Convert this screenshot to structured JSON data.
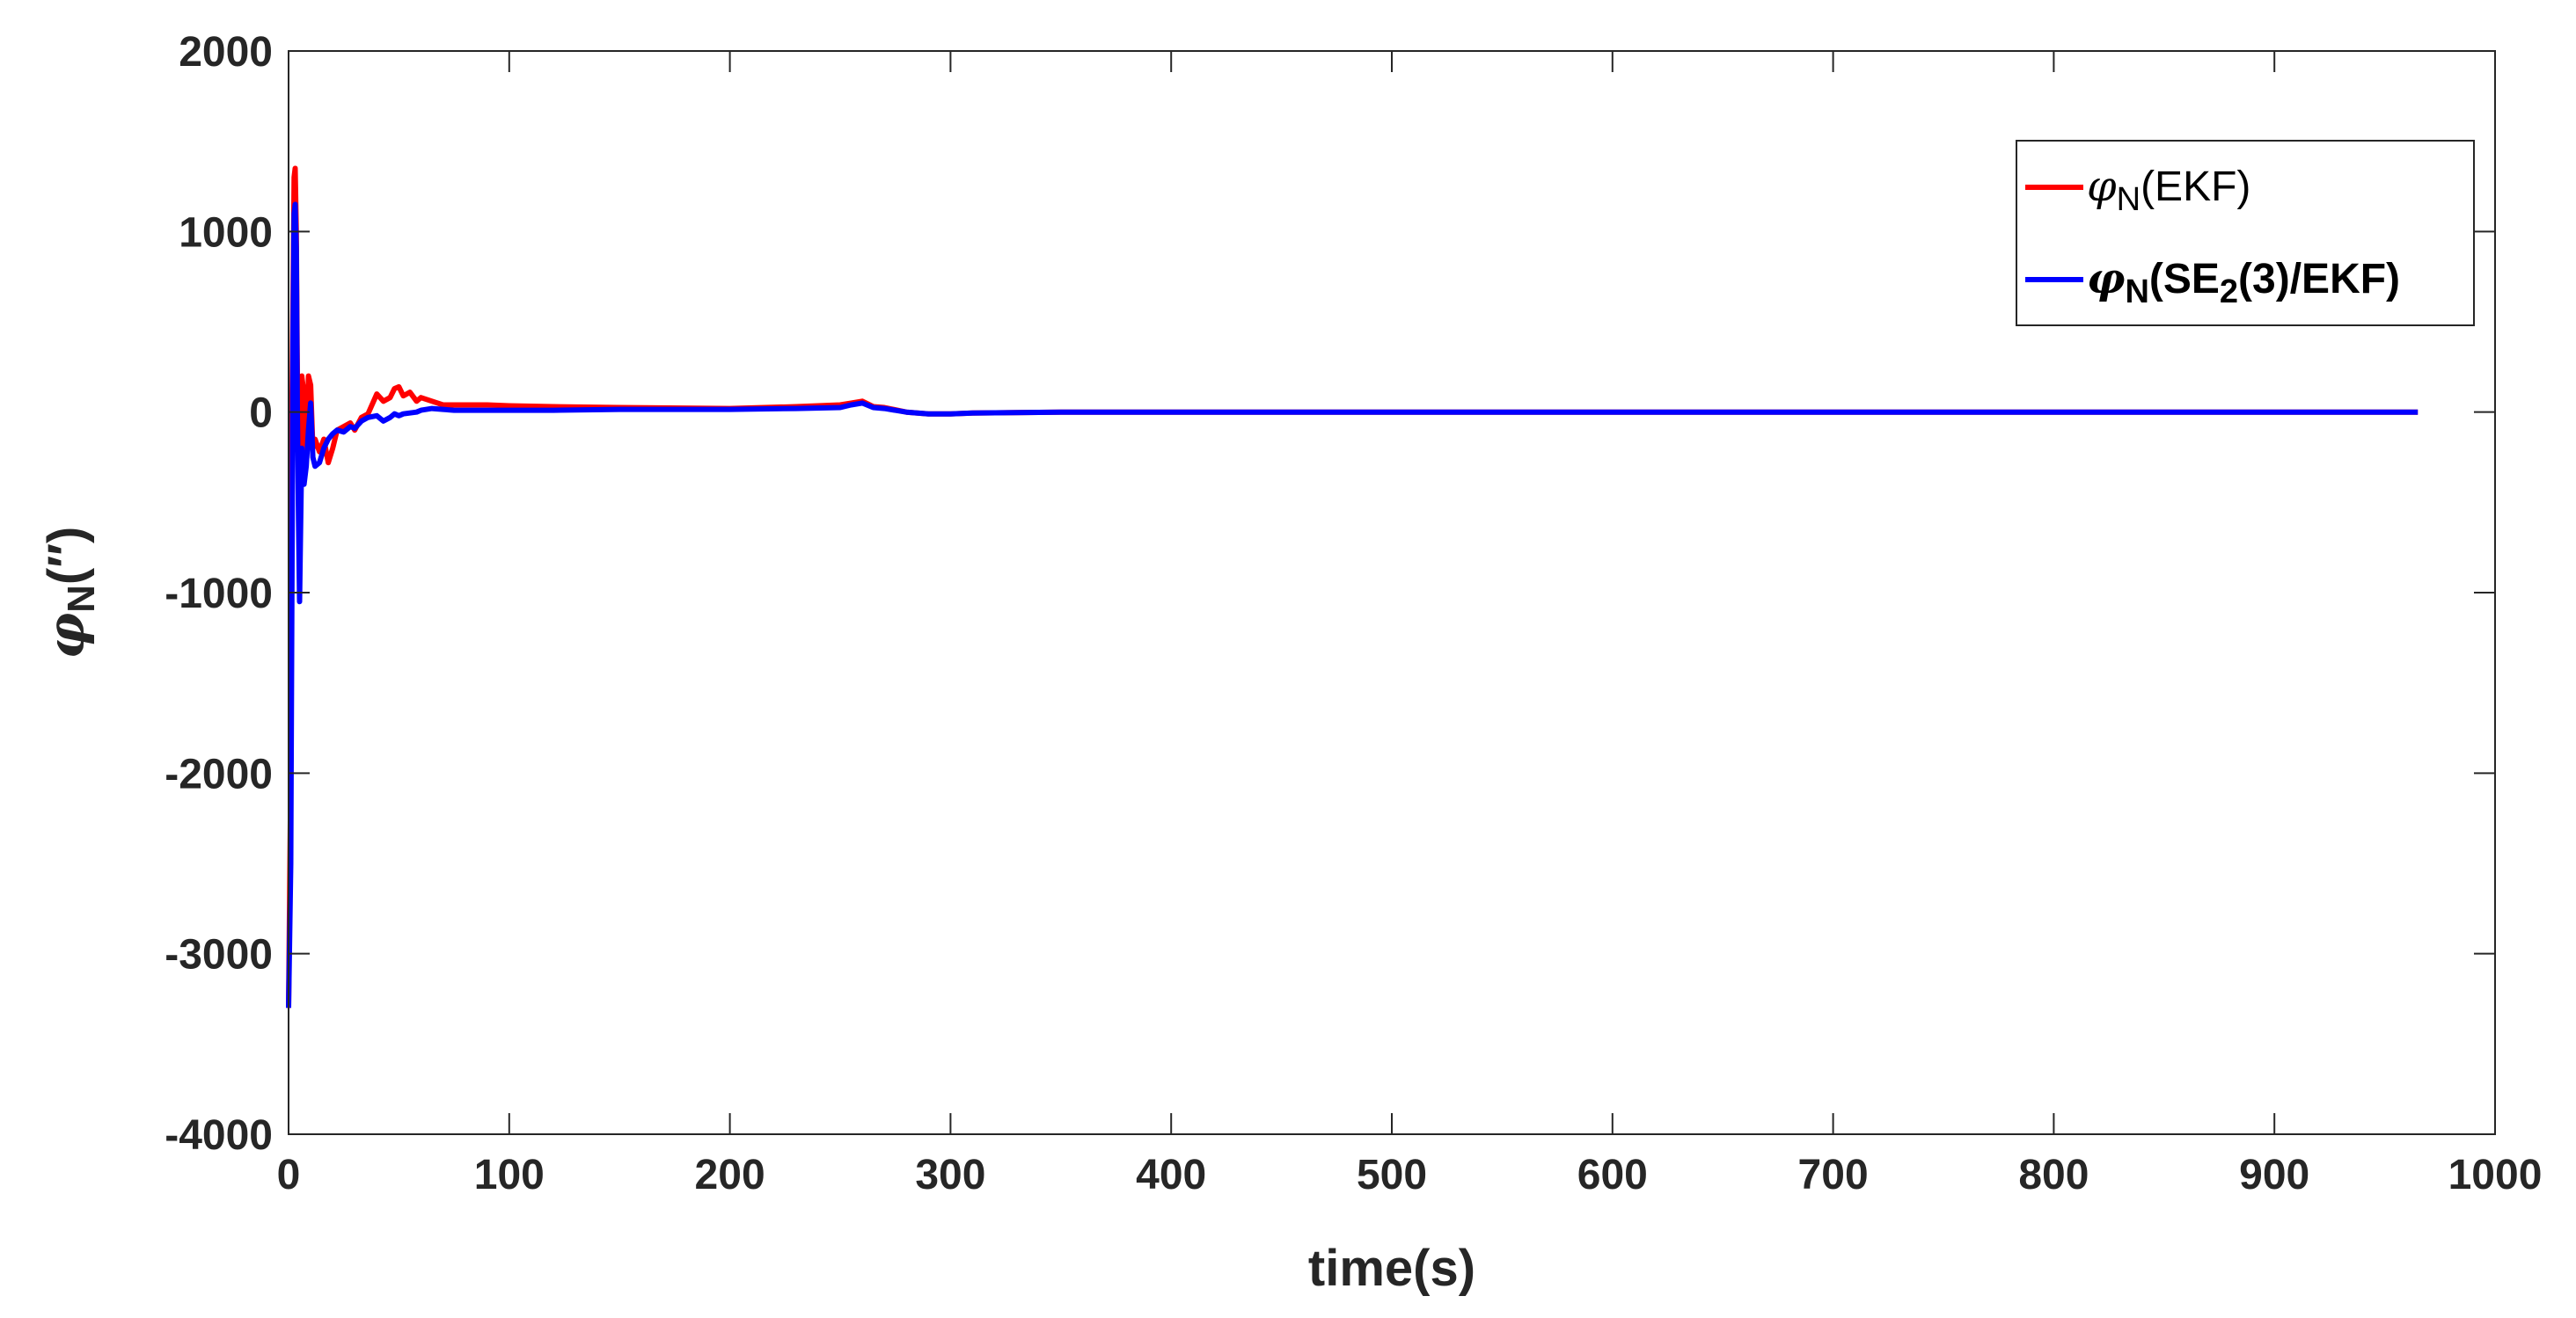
{
  "chart_data": {
    "type": "line",
    "xlabel": "time(s)",
    "ylabel": {
      "symbol": "φ",
      "subscript": "N",
      "unit": "(′′)"
    },
    "xlim": [
      0,
      1000
    ],
    "ylim": [
      -4000,
      2000
    ],
    "xticks": [
      0,
      100,
      200,
      300,
      400,
      500,
      600,
      700,
      800,
      900,
      1000
    ],
    "yticks": [
      -4000,
      -3000,
      -2000,
      -1000,
      0,
      1000,
      2000
    ],
    "xtick_labels": [
      "0",
      "100",
      "200",
      "300",
      "400",
      "500",
      "600",
      "700",
      "800",
      "900",
      "1000"
    ],
    "ytick_labels": [
      "-4000",
      "-3000",
      "-2000",
      "-1000",
      "0",
      "1000",
      "2000"
    ],
    "grid": false,
    "legend_position": "top-right",
    "series": [
      {
        "name": "φN(EKF)",
        "legend": {
          "symbol": "φ",
          "subscript": "N",
          "text": "(EKF)",
          "bold": false
        },
        "color": "#ff0000",
        "x": [
          0,
          1,
          1.5,
          2,
          2.5,
          3,
          3.5,
          4,
          4.5,
          5,
          5.5,
          6,
          7,
          8,
          9,
          10,
          11,
          12,
          14,
          16,
          18,
          20,
          22,
          25,
          28,
          30,
          33,
          36,
          40,
          43,
          46,
          48,
          50,
          52,
          55,
          58,
          60,
          65,
          70,
          75,
          80,
          90,
          100,
          120,
          150,
          200,
          230,
          250,
          255,
          260,
          265,
          270,
          280,
          290,
          300,
          310,
          350,
          400,
          450,
          500,
          600,
          700,
          800,
          900,
          965
        ],
        "y": [
          -3300,
          -2000,
          0,
          600,
          1300,
          1350,
          1000,
          200,
          -400,
          -700,
          -300,
          200,
          100,
          -250,
          200,
          150,
          -200,
          -150,
          -220,
          -150,
          -280,
          -200,
          -100,
          -80,
          -60,
          -100,
          -30,
          -10,
          100,
          60,
          80,
          130,
          140,
          90,
          110,
          60,
          80,
          60,
          40,
          40,
          40,
          40,
          35,
          30,
          25,
          20,
          30,
          40,
          50,
          60,
          30,
          25,
          0,
          -10,
          -10,
          -5,
          0,
          0,
          0,
          0,
          0,
          0,
          0,
          0,
          0
        ]
      },
      {
        "name": "φN(SE2(3)/EKF)",
        "legend": {
          "symbol": "φ",
          "subscript": "N",
          "text": "(SE",
          "text_sub": "2",
          "text_end": "(3)/EKF)",
          "bold": true
        },
        "color": "#0000ff",
        "x": [
          0,
          1,
          1.5,
          2,
          2.5,
          3,
          3.5,
          4,
          4.5,
          5,
          5.5,
          6,
          7,
          8,
          9,
          10,
          11,
          12,
          14,
          16,
          18,
          20,
          22,
          25,
          28,
          30,
          33,
          36,
          40,
          43,
          46,
          48,
          50,
          52,
          55,
          58,
          60,
          65,
          70,
          75,
          80,
          90,
          100,
          120,
          150,
          200,
          230,
          250,
          255,
          260,
          265,
          270,
          280,
          290,
          300,
          310,
          350,
          400,
          450,
          500,
          600,
          700,
          800,
          900,
          965
        ],
        "y": [
          -3300,
          -2500,
          -1000,
          400,
          1100,
          1150,
          900,
          0,
          -600,
          -1050,
          -600,
          -200,
          -400,
          -300,
          -100,
          50,
          -250,
          -300,
          -280,
          -200,
          -150,
          -120,
          -100,
          -110,
          -80,
          -90,
          -50,
          -30,
          -20,
          -50,
          -30,
          -10,
          -20,
          -10,
          -5,
          0,
          10,
          20,
          15,
          10,
          10,
          10,
          10,
          10,
          15,
          15,
          20,
          25,
          40,
          50,
          25,
          20,
          0,
          -10,
          -10,
          -5,
          0,
          0,
          0,
          0,
          0,
          0,
          0,
          0,
          0
        ]
      }
    ]
  }
}
